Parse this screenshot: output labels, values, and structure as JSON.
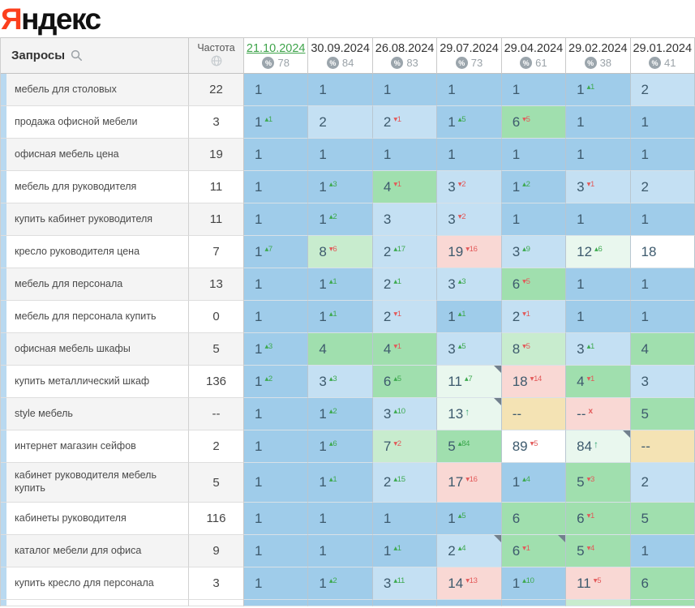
{
  "logo": {
    "brand_accent_letter": "Я",
    "brand_rest": "ндекс",
    "accent_color": "#fc3f1d"
  },
  "palette": {
    "blue1": "#9fccea",
    "blue2": "#c4e0f3",
    "green1": "#a0dfae",
    "green2": "#c8ecce",
    "green3": "#e9f7ee",
    "pink": "#f9d8d4",
    "tan": "#f4e3b4",
    "white": "#ffffff"
  },
  "change_colors": {
    "up": "#3da94f",
    "down": "#e25959",
    "entered": "#2fa26e",
    "dropped": "#e25959"
  },
  "table": {
    "queries_header": "Запросы",
    "frequency_header": "Частота",
    "columns": [
      {
        "date": "21.10.2024",
        "percent": "78",
        "active": true
      },
      {
        "date": "30.09.2024",
        "percent": "84",
        "active": false
      },
      {
        "date": "26.08.2024",
        "percent": "83",
        "active": false
      },
      {
        "date": "29.07.2024",
        "percent": "73",
        "active": false
      },
      {
        "date": "29.04.2024",
        "percent": "61",
        "active": false
      },
      {
        "date": "29.02.2024",
        "percent": "38",
        "active": false
      },
      {
        "date": "29.01.2024",
        "percent": "41",
        "active": false
      }
    ],
    "rows": [
      {
        "query": "мебель для столовых",
        "frequency": "22",
        "cells": [
          {
            "v": "1",
            "bg": "blue1"
          },
          {
            "v": "1",
            "bg": "blue1"
          },
          {
            "v": "1",
            "bg": "blue1"
          },
          {
            "v": "1",
            "bg": "blue1"
          },
          {
            "v": "1",
            "bg": "blue1"
          },
          {
            "v": "1",
            "bg": "blue1",
            "change": 1
          },
          {
            "v": "2",
            "bg": "blue2"
          }
        ]
      },
      {
        "query": "продажа офисной мебели",
        "frequency": "3",
        "cells": [
          {
            "v": "1",
            "bg": "blue1",
            "change": 1
          },
          {
            "v": "2",
            "bg": "blue2"
          },
          {
            "v": "2",
            "bg": "blue2",
            "change": -1
          },
          {
            "v": "1",
            "bg": "blue1",
            "change": 5
          },
          {
            "v": "6",
            "bg": "green1",
            "change": -5
          },
          {
            "v": "1",
            "bg": "blue1"
          },
          {
            "v": "1",
            "bg": "blue1"
          }
        ]
      },
      {
        "query": "офисная мебель цена",
        "frequency": "19",
        "cells": [
          {
            "v": "1",
            "bg": "blue1"
          },
          {
            "v": "1",
            "bg": "blue1"
          },
          {
            "v": "1",
            "bg": "blue1"
          },
          {
            "v": "1",
            "bg": "blue1"
          },
          {
            "v": "1",
            "bg": "blue1"
          },
          {
            "v": "1",
            "bg": "blue1"
          },
          {
            "v": "1",
            "bg": "blue1"
          }
        ]
      },
      {
        "query": "мебель для руководителя",
        "frequency": "11",
        "cells": [
          {
            "v": "1",
            "bg": "blue1"
          },
          {
            "v": "1",
            "bg": "blue1",
            "change": 3
          },
          {
            "v": "4",
            "bg": "green1",
            "change": -1
          },
          {
            "v": "3",
            "bg": "blue2",
            "change": -2
          },
          {
            "v": "1",
            "bg": "blue1",
            "change": 2
          },
          {
            "v": "3",
            "bg": "blue2",
            "change": -1
          },
          {
            "v": "2",
            "bg": "blue2"
          }
        ]
      },
      {
        "query": "купить кабинет руководителя",
        "frequency": "11",
        "cells": [
          {
            "v": "1",
            "bg": "blue1"
          },
          {
            "v": "1",
            "bg": "blue1",
            "change": 2
          },
          {
            "v": "3",
            "bg": "blue2"
          },
          {
            "v": "3",
            "bg": "blue2",
            "change": -2
          },
          {
            "v": "1",
            "bg": "blue1"
          },
          {
            "v": "1",
            "bg": "blue1"
          },
          {
            "v": "1",
            "bg": "blue1"
          }
        ]
      },
      {
        "query": "кресло руководителя цена",
        "frequency": "7",
        "cells": [
          {
            "v": "1",
            "bg": "blue1",
            "change": 7
          },
          {
            "v": "8",
            "bg": "green2",
            "change": -6
          },
          {
            "v": "2",
            "bg": "blue2",
            "change": 17
          },
          {
            "v": "19",
            "bg": "pink",
            "change": -16
          },
          {
            "v": "3",
            "bg": "blue2",
            "change": 9
          },
          {
            "v": "12",
            "bg": "green3",
            "change": 6
          },
          {
            "v": "18",
            "bg": "white"
          }
        ]
      },
      {
        "query": "мебель для персонала",
        "frequency": "13",
        "cells": [
          {
            "v": "1",
            "bg": "blue1"
          },
          {
            "v": "1",
            "bg": "blue1",
            "change": 1
          },
          {
            "v": "2",
            "bg": "blue2",
            "change": 1
          },
          {
            "v": "3",
            "bg": "blue2",
            "change": 3
          },
          {
            "v": "6",
            "bg": "green1",
            "change": -5
          },
          {
            "v": "1",
            "bg": "blue1"
          },
          {
            "v": "1",
            "bg": "blue1"
          }
        ]
      },
      {
        "query": "мебель для персонала купить",
        "frequency": "0",
        "cells": [
          {
            "v": "1",
            "bg": "blue1"
          },
          {
            "v": "1",
            "bg": "blue1",
            "change": 1
          },
          {
            "v": "2",
            "bg": "blue2",
            "change": -1
          },
          {
            "v": "1",
            "bg": "blue1",
            "change": 1
          },
          {
            "v": "2",
            "bg": "blue2",
            "change": -1
          },
          {
            "v": "1",
            "bg": "blue1"
          },
          {
            "v": "1",
            "bg": "blue1"
          }
        ]
      },
      {
        "query": "офисная мебель шкафы",
        "frequency": "5",
        "cells": [
          {
            "v": "1",
            "bg": "blue1",
            "change": 3
          },
          {
            "v": "4",
            "bg": "green1"
          },
          {
            "v": "4",
            "bg": "green1",
            "change": -1
          },
          {
            "v": "3",
            "bg": "blue2",
            "change": 5
          },
          {
            "v": "8",
            "bg": "green2",
            "change": -5
          },
          {
            "v": "3",
            "bg": "blue2",
            "change": 1
          },
          {
            "v": "4",
            "bg": "green1"
          }
        ]
      },
      {
        "query": "купить металлический шкаф",
        "frequency": "136",
        "cells": [
          {
            "v": "1",
            "bg": "blue1",
            "change": 2
          },
          {
            "v": "3",
            "bg": "blue2",
            "change": 3
          },
          {
            "v": "6",
            "bg": "green1",
            "change": 5
          },
          {
            "v": "11",
            "bg": "green3",
            "change": 7,
            "corner": true
          },
          {
            "v": "18",
            "bg": "pink",
            "change": -14
          },
          {
            "v": "4",
            "bg": "green1",
            "change": -1
          },
          {
            "v": "3",
            "bg": "blue2"
          }
        ]
      },
      {
        "query": "style мебель",
        "frequency": "--",
        "cells": [
          {
            "v": "1",
            "bg": "blue1"
          },
          {
            "v": "1",
            "bg": "blue1",
            "change": 2
          },
          {
            "v": "3",
            "bg": "blue2",
            "change": 10
          },
          {
            "v": "13",
            "bg": "green3",
            "entered": true,
            "corner": true
          },
          {
            "v": "--",
            "bg": "tan"
          },
          {
            "v": "--",
            "bg": "pink",
            "dropped": true
          },
          {
            "v": "5",
            "bg": "green1"
          }
        ]
      },
      {
        "query": "интернет магазин сейфов",
        "frequency": "2",
        "cells": [
          {
            "v": "1",
            "bg": "blue1"
          },
          {
            "v": "1",
            "bg": "blue1",
            "change": 6
          },
          {
            "v": "7",
            "bg": "green2",
            "change": -2
          },
          {
            "v": "5",
            "bg": "green1",
            "change": 84
          },
          {
            "v": "89",
            "bg": "white",
            "change": -5
          },
          {
            "v": "84",
            "bg": "green3",
            "entered": true,
            "corner": true
          },
          {
            "v": "--",
            "bg": "tan"
          }
        ]
      },
      {
        "query": "кабинет руководителя мебель купить",
        "frequency": "5",
        "cells": [
          {
            "v": "1",
            "bg": "blue1"
          },
          {
            "v": "1",
            "bg": "blue1",
            "change": 1
          },
          {
            "v": "2",
            "bg": "blue2",
            "change": 15
          },
          {
            "v": "17",
            "bg": "pink",
            "change": -16
          },
          {
            "v": "1",
            "bg": "blue1",
            "change": 4
          },
          {
            "v": "5",
            "bg": "green1",
            "change": -3
          },
          {
            "v": "2",
            "bg": "blue2"
          }
        ]
      },
      {
        "query": "кабинеты руководителя",
        "frequency": "116",
        "cells": [
          {
            "v": "1",
            "bg": "blue1"
          },
          {
            "v": "1",
            "bg": "blue1"
          },
          {
            "v": "1",
            "bg": "blue1"
          },
          {
            "v": "1",
            "bg": "blue1",
            "change": 5
          },
          {
            "v": "6",
            "bg": "green1"
          },
          {
            "v": "6",
            "bg": "green1",
            "change": -1
          },
          {
            "v": "5",
            "bg": "green1"
          }
        ]
      },
      {
        "query": "каталог мебели для офиса",
        "frequency": "9",
        "cells": [
          {
            "v": "1",
            "bg": "blue1"
          },
          {
            "v": "1",
            "bg": "blue1"
          },
          {
            "v": "1",
            "bg": "blue1",
            "change": 1
          },
          {
            "v": "2",
            "bg": "blue2",
            "change": 4,
            "corner": true
          },
          {
            "v": "6",
            "bg": "green1",
            "change": -1,
            "corner": true
          },
          {
            "v": "5",
            "bg": "green1",
            "change": -4
          },
          {
            "v": "1",
            "bg": "blue1"
          }
        ]
      },
      {
        "query": "купить кресло для персонала",
        "frequency": "3",
        "cells": [
          {
            "v": "1",
            "bg": "blue1"
          },
          {
            "v": "1",
            "bg": "blue1",
            "change": 2
          },
          {
            "v": "3",
            "bg": "blue2",
            "change": 11
          },
          {
            "v": "14",
            "bg": "pink",
            "change": -13
          },
          {
            "v": "1",
            "bg": "blue1",
            "change": 10
          },
          {
            "v": "11",
            "bg": "pink",
            "change": -5
          },
          {
            "v": "6",
            "bg": "green1"
          }
        ]
      }
    ],
    "next_row_preview": [
      "blue1",
      "blue1",
      "blue1",
      "blue1",
      "blue1",
      "green2",
      "green1"
    ]
  }
}
